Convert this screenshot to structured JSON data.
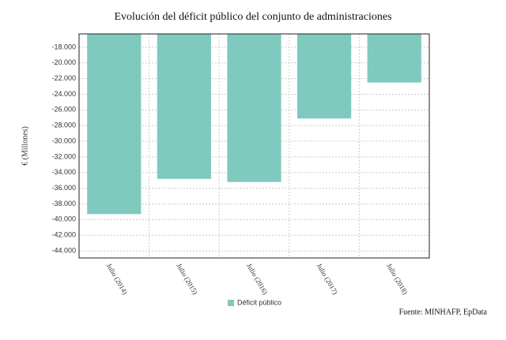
{
  "chart_data": {
    "type": "bar",
    "title": "Evolución del déficit público del conjunto de administraciones",
    "y_label": "€ (Millones)",
    "source": "Fuente: MINHAFP, EpData",
    "categories": [
      "Julio (2014)",
      "Julio (2015)",
      "Julio (2016)",
      "Julio (2017)",
      "Julio (2018)"
    ],
    "series": [
      {
        "name": "Déficit público",
        "color": "#7fc9bf",
        "values": [
          -39300,
          -34800,
          -35200,
          -27100,
          -22500
        ]
      }
    ],
    "ylim": [
      -44900,
      -16300
    ],
    "yticks": [
      {
        "value": -18000,
        "label": "-18.000"
      },
      {
        "value": -20000,
        "label": "-20.000"
      },
      {
        "value": -22000,
        "label": "-22.000"
      },
      {
        "value": -24000,
        "label": "-24.000"
      },
      {
        "value": -26000,
        "label": "-26.000"
      },
      {
        "value": -28000,
        "label": "-28.000"
      },
      {
        "value": -30000,
        "label": "-30.000"
      },
      {
        "value": -32000,
        "label": "-32.000"
      },
      {
        "value": -34000,
        "label": "-34.000"
      },
      {
        "value": -36000,
        "label": "-36.000"
      },
      {
        "value": -38000,
        "label": "-38.000"
      },
      {
        "value": -40000,
        "label": "-40.000"
      },
      {
        "value": -42000,
        "label": "-42.000"
      },
      {
        "value": -44000,
        "label": "-44.000"
      }
    ],
    "grid": true
  }
}
